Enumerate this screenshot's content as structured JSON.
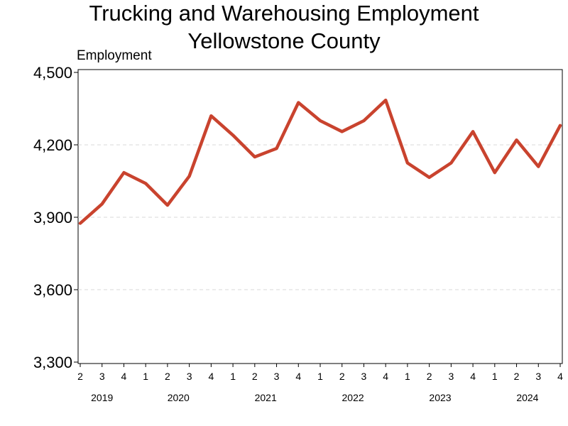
{
  "chart_data": {
    "type": "line",
    "title": "Trucking and Warehousing Employment",
    "subtitle": "Yellowstone County",
    "ylabel": "Employment",
    "xlabel": "",
    "ylim": [
      3300,
      4500
    ],
    "yticks": [
      3300,
      3600,
      3900,
      4200,
      4500
    ],
    "ytick_labels": [
      "3,300",
      "3,600",
      "3,900",
      "4,200",
      "4,500"
    ],
    "grid": "horizontal dashed",
    "line_color": "#c9432e",
    "x": [
      "2019 Q2",
      "2019 Q3",
      "2019 Q4",
      "2020 Q1",
      "2020 Q2",
      "2020 Q3",
      "2020 Q4",
      "2021 Q1",
      "2021 Q2",
      "2021 Q3",
      "2021 Q4",
      "2022 Q1",
      "2022 Q2",
      "2022 Q3",
      "2022 Q4",
      "2023 Q1",
      "2023 Q2",
      "2023 Q3",
      "2023 Q4",
      "2024 Q1",
      "2024 Q2",
      "2024 Q3",
      "2024 Q4"
    ],
    "quarter_labels": [
      "2",
      "3",
      "4",
      "1",
      "2",
      "3",
      "4",
      "1",
      "2",
      "3",
      "4",
      "1",
      "2",
      "3",
      "4",
      "1",
      "2",
      "3",
      "4",
      "1",
      "2",
      "3",
      "4"
    ],
    "years": [
      {
        "label": "2019",
        "start": 0,
        "end": 2
      },
      {
        "label": "2020",
        "start": 3,
        "end": 6
      },
      {
        "label": "2021",
        "start": 7,
        "end": 10
      },
      {
        "label": "2022",
        "start": 11,
        "end": 14
      },
      {
        "label": "2023",
        "start": 15,
        "end": 18
      },
      {
        "label": "2024",
        "start": 19,
        "end": 22
      }
    ],
    "series": [
      {
        "values": [
          3875,
          3955,
          4085,
          4040,
          3950,
          4070,
          4320,
          4240,
          4150,
          4185,
          4375,
          4300,
          4255,
          4300,
          4385,
          4125,
          4065,
          4125,
          4255,
          4085,
          4220,
          4110,
          4280
        ]
      }
    ]
  }
}
